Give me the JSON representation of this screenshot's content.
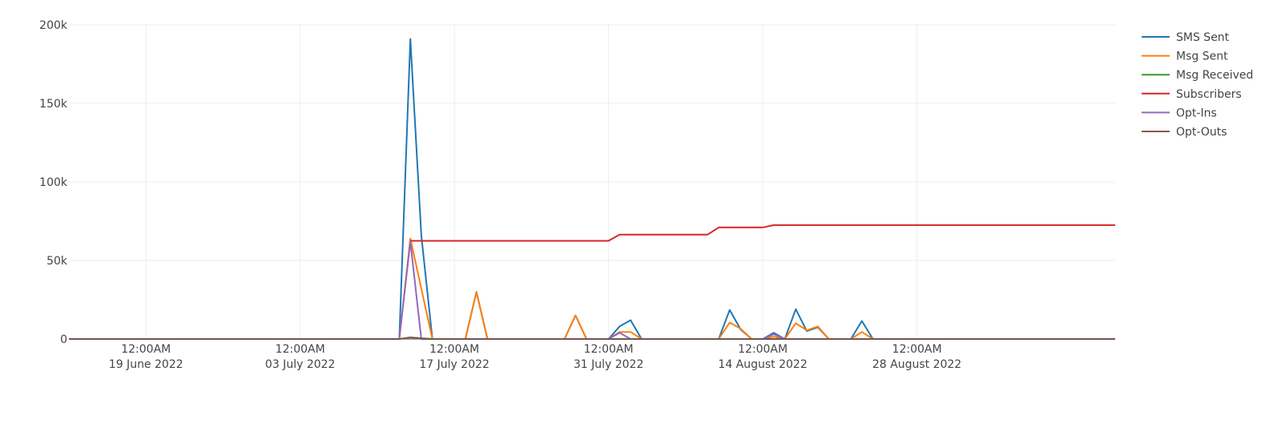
{
  "chart_data": {
    "type": "line",
    "title": "",
    "xlabel": "",
    "ylabel": "",
    "x_range": [
      "2022-06-12",
      "2022-09-15"
    ],
    "ylim": [
      0,
      200000
    ],
    "y_ticks": [
      {
        "value": 0,
        "label": "0"
      },
      {
        "value": 50000,
        "label": "50k"
      },
      {
        "value": 100000,
        "label": "100k"
      },
      {
        "value": 150000,
        "label": "150k"
      },
      {
        "value": 200000,
        "label": "200k"
      }
    ],
    "x_ticks": [
      {
        "date": "2022-06-19",
        "time": "12:00AM",
        "label": "19 June 2022"
      },
      {
        "date": "2022-07-03",
        "time": "12:00AM",
        "label": "03 July 2022"
      },
      {
        "date": "2022-07-17",
        "time": "12:00AM",
        "label": "17 July 2022"
      },
      {
        "date": "2022-07-31",
        "time": "12:00AM",
        "label": "31 July 2022"
      },
      {
        "date": "2022-08-14",
        "time": "12:00AM",
        "label": "14 August 2022"
      },
      {
        "date": "2022-08-28",
        "time": "12:00AM",
        "label": "28 August 2022"
      }
    ],
    "grid": true,
    "legend_position": "top-right",
    "series": [
      {
        "name": "SMS Sent",
        "color": "#1f77b4",
        "points": [
          [
            "2022-06-12",
            0
          ],
          [
            "2022-07-12",
            0
          ],
          [
            "2022-07-13",
            191000
          ],
          [
            "2022-07-14",
            66000
          ],
          [
            "2022-07-15",
            0
          ],
          [
            "2022-07-18",
            0
          ],
          [
            "2022-07-19",
            30000
          ],
          [
            "2022-07-20",
            0
          ],
          [
            "2022-07-27",
            0
          ],
          [
            "2022-07-28",
            15000
          ],
          [
            "2022-07-29",
            0
          ],
          [
            "2022-07-31",
            0
          ],
          [
            "2022-08-01",
            8000
          ],
          [
            "2022-08-02",
            12000
          ],
          [
            "2022-08-03",
            0
          ],
          [
            "2022-08-10",
            0
          ],
          [
            "2022-08-11",
            18500
          ],
          [
            "2022-08-12",
            6000
          ],
          [
            "2022-08-13",
            0
          ],
          [
            "2022-08-14",
            0
          ],
          [
            "2022-08-15",
            4000
          ],
          [
            "2022-08-16",
            0
          ],
          [
            "2022-08-17",
            19000
          ],
          [
            "2022-08-18",
            5000
          ],
          [
            "2022-08-19",
            7500
          ],
          [
            "2022-08-20",
            0
          ],
          [
            "2022-08-22",
            0
          ],
          [
            "2022-08-23",
            11500
          ],
          [
            "2022-08-24",
            0
          ],
          [
            "2022-09-15",
            0
          ]
        ]
      },
      {
        "name": "Msg Sent",
        "color": "#ff7f0e",
        "points": [
          [
            "2022-06-12",
            0
          ],
          [
            "2022-07-12",
            0
          ],
          [
            "2022-07-13",
            64000
          ],
          [
            "2022-07-14",
            32000
          ],
          [
            "2022-07-15",
            0
          ],
          [
            "2022-07-18",
            0
          ],
          [
            "2022-07-19",
            30000
          ],
          [
            "2022-07-20",
            0
          ],
          [
            "2022-07-27",
            0
          ],
          [
            "2022-07-28",
            15000
          ],
          [
            "2022-07-29",
            0
          ],
          [
            "2022-07-31",
            0
          ],
          [
            "2022-08-01",
            4500
          ],
          [
            "2022-08-02",
            4500
          ],
          [
            "2022-08-03",
            0
          ],
          [
            "2022-08-10",
            0
          ],
          [
            "2022-08-11",
            10500
          ],
          [
            "2022-08-12",
            6500
          ],
          [
            "2022-08-13",
            0
          ],
          [
            "2022-08-14",
            0
          ],
          [
            "2022-08-15",
            1500
          ],
          [
            "2022-08-16",
            0
          ],
          [
            "2022-08-17",
            10000
          ],
          [
            "2022-08-18",
            5500
          ],
          [
            "2022-08-19",
            8000
          ],
          [
            "2022-08-20",
            0
          ],
          [
            "2022-08-22",
            0
          ],
          [
            "2022-08-23",
            4500
          ],
          [
            "2022-08-24",
            0
          ],
          [
            "2022-09-15",
            0
          ]
        ]
      },
      {
        "name": "Msg Received",
        "color": "#2ca02c",
        "points": [
          [
            "2022-06-12",
            0
          ],
          [
            "2022-07-12",
            0
          ],
          [
            "2022-07-13",
            1000
          ],
          [
            "2022-07-14",
            500
          ],
          [
            "2022-07-15",
            0
          ],
          [
            "2022-09-15",
            0
          ]
        ]
      },
      {
        "name": "Subscribers",
        "color": "#d62728",
        "points": [
          [
            "2022-07-13",
            62500
          ],
          [
            "2022-07-31",
            62500
          ],
          [
            "2022-08-01",
            66500
          ],
          [
            "2022-08-09",
            66500
          ],
          [
            "2022-08-10",
            71000
          ],
          [
            "2022-08-14",
            71000
          ],
          [
            "2022-08-15",
            72500
          ],
          [
            "2022-09-15",
            72500
          ]
        ]
      },
      {
        "name": "Opt-Ins",
        "color": "#9467bd",
        "points": [
          [
            "2022-06-12",
            0
          ],
          [
            "2022-07-12",
            0
          ],
          [
            "2022-07-13",
            62000
          ],
          [
            "2022-07-14",
            0
          ],
          [
            "2022-07-31",
            0
          ],
          [
            "2022-08-01",
            4000
          ],
          [
            "2022-08-02",
            0
          ],
          [
            "2022-08-14",
            0
          ],
          [
            "2022-08-15",
            3000
          ],
          [
            "2022-08-16",
            0
          ],
          [
            "2022-09-15",
            0
          ]
        ]
      },
      {
        "name": "Opt-Outs",
        "color": "#8c564b",
        "points": [
          [
            "2022-06-12",
            0
          ],
          [
            "2022-07-12",
            0
          ],
          [
            "2022-07-13",
            1000
          ],
          [
            "2022-07-14",
            300
          ],
          [
            "2022-07-15",
            0
          ],
          [
            "2022-09-15",
            0
          ]
        ]
      }
    ]
  }
}
